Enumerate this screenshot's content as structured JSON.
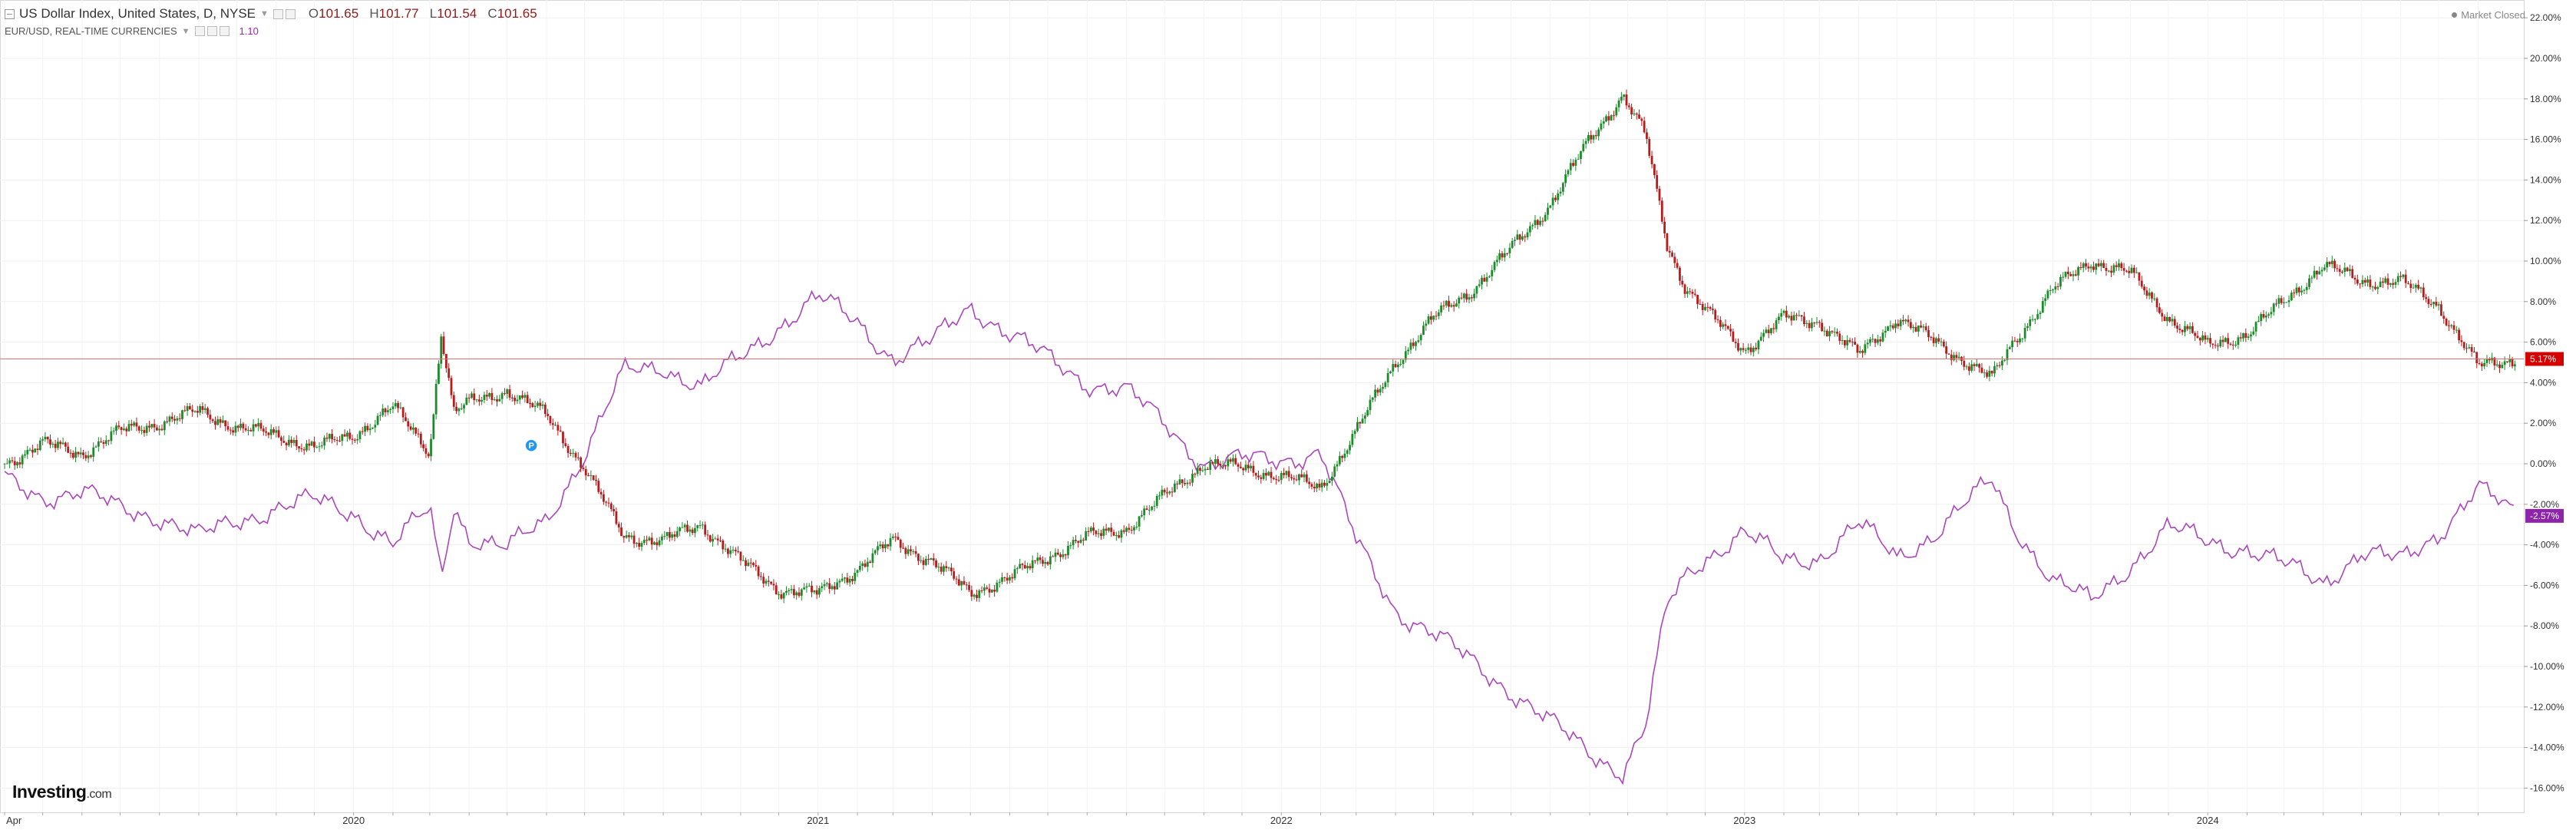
{
  "legend": {
    "main_title": "US Dollar Index, United States, D, NYSE",
    "ohlc": {
      "o_label": "O",
      "o": "101.65",
      "h_label": "H",
      "h": "101.77",
      "l_label": "L",
      "l": "101.54",
      "c_label": "C",
      "c": "101.65"
    },
    "compare_title": "EUR/USD, REAL-TIME CURRENCIES",
    "compare_value": "1.10"
  },
  "status": {
    "market": "Market Closed"
  },
  "logo": {
    "main": "Investing",
    "suffix": ".com"
  },
  "markers": {
    "event_badge": "P"
  },
  "colors": {
    "up": "#1b8c2a",
    "down": "#b71c1c",
    "compare": "#ab47bc",
    "last_line": "#e57373",
    "dxy_badge": "#d50000",
    "eur_badge": "#8e24aa"
  },
  "chart_data": {
    "type": "line",
    "y_unit": "% change",
    "ylim": [
      -17,
      22
    ],
    "yticks": [
      "22.00%",
      "20.00%",
      "18.00%",
      "16.00%",
      "14.00%",
      "12.00%",
      "10.00%",
      "8.00%",
      "6.00%",
      "4.00%",
      "2.00%",
      "0.00%",
      "-2.00%",
      "-4.00%",
      "-6.00%",
      "-8.00%",
      "-10.00%",
      "-12.00%",
      "-14.00%",
      "-16.00%"
    ],
    "yticks_values": [
      22,
      20,
      18,
      16,
      14,
      12,
      10,
      8,
      6,
      4,
      2,
      0,
      -2,
      -4,
      -6,
      -8,
      -10,
      -12,
      -14,
      -16
    ],
    "x_range": [
      "2019-04-01",
      "2024-08-31"
    ],
    "xticks": [
      {
        "label": "Apr",
        "date": "2019-04-01"
      },
      {
        "label": "2020",
        "date": "2020-01-01"
      },
      {
        "label": "2021",
        "date": "2021-01-01"
      },
      {
        "label": "2022",
        "date": "2022-01-01"
      },
      {
        "label": "2023",
        "date": "2023-01-01"
      },
      {
        "label": "2024",
        "date": "2024-01-01"
      }
    ],
    "grid": true,
    "series": [
      {
        "name": "US Dollar Index",
        "style": "candlestick",
        "last_value": 5.17,
        "last_label": "5.17%",
        "x": [
          "2019-04-01",
          "2019-05-01",
          "2019-06-01",
          "2019-07-01",
          "2019-08-01",
          "2019-09-01",
          "2019-10-01",
          "2019-11-01",
          "2019-12-01",
          "2020-01-01",
          "2020-02-01",
          "2020-03-01",
          "2020-03-10",
          "2020-03-20",
          "2020-04-01",
          "2020-05-01",
          "2020-06-01",
          "2020-07-01",
          "2020-08-01",
          "2020-09-01",
          "2020-10-01",
          "2020-11-01",
          "2020-12-01",
          "2021-01-01",
          "2021-02-01",
          "2021-03-01",
          "2021-04-01",
          "2021-05-01",
          "2021-06-01",
          "2021-07-01",
          "2021-08-01",
          "2021-09-01",
          "2021-10-01",
          "2021-11-01",
          "2021-12-01",
          "2022-01-01",
          "2022-02-01",
          "2022-03-01",
          "2022-04-01",
          "2022-05-01",
          "2022-06-01",
          "2022-07-01",
          "2022-08-01",
          "2022-09-01",
          "2022-09-27",
          "2022-10-15",
          "2022-11-01",
          "2022-11-15",
          "2022-12-01",
          "2023-01-01",
          "2023-02-01",
          "2023-03-01",
          "2023-04-01",
          "2023-05-01",
          "2023-06-01",
          "2023-07-15",
          "2023-08-01",
          "2023-09-01",
          "2023-10-01",
          "2023-11-01",
          "2023-12-01",
          "2024-01-01",
          "2024-02-01",
          "2024-03-01",
          "2024-04-01",
          "2024-05-01",
          "2024-06-01",
          "2024-07-01",
          "2024-08-01",
          "2024-08-31"
        ],
        "values": [
          0.0,
          1.0,
          0.5,
          1.6,
          2.0,
          2.6,
          1.8,
          1.4,
          0.8,
          1.4,
          2.8,
          0.6,
          6.5,
          2.5,
          3.0,
          3.6,
          2.4,
          -0.2,
          -3.6,
          -3.8,
          -3.0,
          -4.8,
          -6.2,
          -6.4,
          -5.2,
          -3.8,
          -4.8,
          -6.4,
          -5.6,
          -4.6,
          -3.6,
          -3.2,
          -1.6,
          0.0,
          -0.2,
          -0.6,
          -1.2,
          1.6,
          5.0,
          7.2,
          8.6,
          10.6,
          12.8,
          16.0,
          18.2,
          16.2,
          10.8,
          8.8,
          7.6,
          5.6,
          7.2,
          7.0,
          5.4,
          7.2,
          6.0,
          4.2,
          6.0,
          8.6,
          10.0,
          9.4,
          7.2,
          5.8,
          6.4,
          8.0,
          9.8,
          9.0,
          9.0,
          7.8,
          4.8,
          5.17
        ]
      },
      {
        "name": "EUR/USD",
        "style": "line",
        "last_value": -2.57,
        "last_label": "-2.57%",
        "x": [
          "2019-04-01",
          "2019-05-01",
          "2019-06-01",
          "2019-07-01",
          "2019-08-01",
          "2019-09-01",
          "2019-10-01",
          "2019-11-01",
          "2019-12-01",
          "2020-01-01",
          "2020-02-01",
          "2020-03-01",
          "2020-03-10",
          "2020-03-20",
          "2020-04-01",
          "2020-05-01",
          "2020-06-01",
          "2020-07-01",
          "2020-08-01",
          "2020-09-01",
          "2020-10-01",
          "2020-11-01",
          "2020-12-01",
          "2021-01-01",
          "2021-02-01",
          "2021-03-01",
          "2021-04-01",
          "2021-05-01",
          "2021-06-01",
          "2021-07-01",
          "2021-08-01",
          "2021-09-01",
          "2021-10-01",
          "2021-11-01",
          "2021-12-01",
          "2022-01-01",
          "2022-02-01",
          "2022-03-01",
          "2022-04-01",
          "2022-05-01",
          "2022-06-01",
          "2022-07-01",
          "2022-08-01",
          "2022-09-01",
          "2022-09-27",
          "2022-10-15",
          "2022-11-01",
          "2022-11-15",
          "2022-12-01",
          "2023-01-01",
          "2023-02-01",
          "2023-03-01",
          "2023-04-01",
          "2023-05-01",
          "2023-06-01",
          "2023-07-15",
          "2023-08-01",
          "2023-09-01",
          "2023-10-01",
          "2023-11-01",
          "2023-12-01",
          "2024-01-01",
          "2024-02-01",
          "2024-03-01",
          "2024-04-01",
          "2024-05-01",
          "2024-06-01",
          "2024-07-01",
          "2024-08-01",
          "2024-08-31"
        ],
        "values": [
          -0.8,
          -1.6,
          -1.4,
          -2.2,
          -2.6,
          -3.6,
          -2.8,
          -2.2,
          -1.8,
          -2.4,
          -4.0,
          -2.2,
          -5.6,
          -2.0,
          -3.6,
          -4.2,
          -2.8,
          0.5,
          4.5,
          4.8,
          3.8,
          5.2,
          6.8,
          8.2,
          7.0,
          5.2,
          6.0,
          7.8,
          6.4,
          5.2,
          4.0,
          3.6,
          2.0,
          0.0,
          0.2,
          0.2,
          0.6,
          -3.8,
          -7.2,
          -8.4,
          -9.8,
          -11.2,
          -12.8,
          -14.2,
          -15.2,
          -13.0,
          -7.0,
          -5.6,
          -4.6,
          -3.4,
          -4.8,
          -4.6,
          -3.0,
          -4.6,
          -3.4,
          -0.8,
          -3.0,
          -5.8,
          -6.8,
          -5.0,
          -3.2,
          -3.8,
          -4.2,
          -5.0,
          -5.8,
          -4.4,
          -4.8,
          -3.4,
          -1.2,
          -2.57
        ]
      }
    ]
  }
}
